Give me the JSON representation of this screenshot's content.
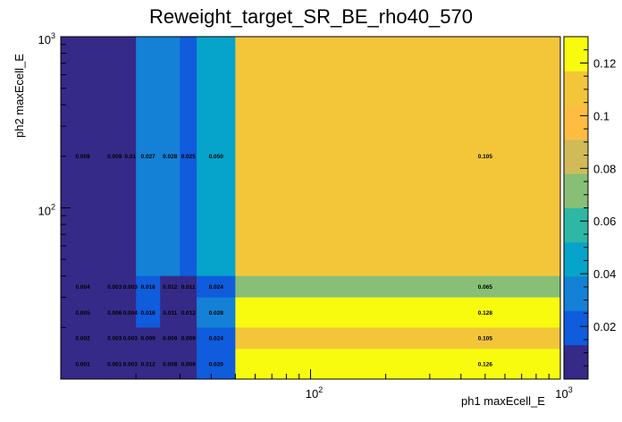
{
  "chart_data": {
    "type": "heatmap",
    "title": "Reweight_target_SR_BE_rho40_570",
    "xlabel": "ph1 maxEcell_E",
    "ylabel": "ph2 maxEcell_E",
    "x_scale": "log",
    "y_scale": "log",
    "xlim": [
      10,
      1000
    ],
    "ylim": [
      10,
      1000
    ],
    "x_edges": [
      10,
      15,
      18,
      20,
      25,
      30,
      35,
      50,
      1000
    ],
    "y_edges": [
      10,
      15,
      20,
      30,
      40,
      1000
    ],
    "x_ticks": [
      {
        "value": 100,
        "label": "10^2"
      },
      {
        "value": 1000,
        "label": "10^3"
      }
    ],
    "y_ticks": [
      {
        "value": 100,
        "label": "10^2"
      },
      {
        "value": 1000,
        "label": "10^3"
      }
    ],
    "z_range": [
      0,
      0.13
    ],
    "z_ticks": [
      "0.02",
      "0.04",
      "0.06",
      "0.08",
      "0.1",
      "0.12"
    ],
    "rows": [
      {
        "y_range": [
          40,
          1000
        ],
        "values": [
          0.008,
          0.009,
          0.01,
          0.027,
          0.028,
          0.025,
          0.05,
          0.105
        ],
        "labels": [
          "0.008",
          "0.009",
          "0.01",
          "0.027",
          "0.028",
          "0.025",
          "0.050",
          "0.105"
        ]
      },
      {
        "y_range": [
          30,
          40
        ],
        "values": [
          0.004,
          0.003,
          0.003,
          0.018,
          0.012,
          0.011,
          0.024,
          0.065
        ],
        "labels": [
          "0.004",
          "0.003",
          "0.003",
          "0.018",
          "0.012",
          "0.011",
          "0.024",
          "0.065"
        ]
      },
      {
        "y_range": [
          20,
          30
        ],
        "values": [
          0.005,
          0.006,
          0.004,
          0.016,
          0.011,
          0.012,
          0.028,
          0.128
        ],
        "labels": [
          "0.005",
          "0.006",
          "0.004",
          "0.016",
          "0.011",
          "0.012",
          "0.028",
          "0.128"
        ]
      },
      {
        "y_range": [
          15,
          20
        ],
        "values": [
          0.002,
          0.003,
          0.003,
          0.009,
          0.009,
          0.009,
          0.024,
          0.105
        ],
        "labels": [
          "0.002",
          "0.003",
          "0.003",
          "0.009",
          "0.009",
          "0.009",
          "0.024",
          "0.105"
        ]
      },
      {
        "y_range": [
          10,
          15
        ],
        "values": [
          0.001,
          0.001,
          0.003,
          0.012,
          0.008,
          0.009,
          0.02,
          0.126
        ],
        "labels": [
          "0.001",
          "0.001",
          "0.003",
          "0.012",
          "0.008",
          "0.009",
          "0.020",
          "0.126"
        ]
      }
    ],
    "palette": [
      "#352a87",
      "#0f5cdd",
      "#1481d6",
      "#06a4ca",
      "#2eb7a4",
      "#87bf77",
      "#d1bb59",
      "#febd42",
      "#f3c63a",
      "#f9fb0e"
    ]
  }
}
